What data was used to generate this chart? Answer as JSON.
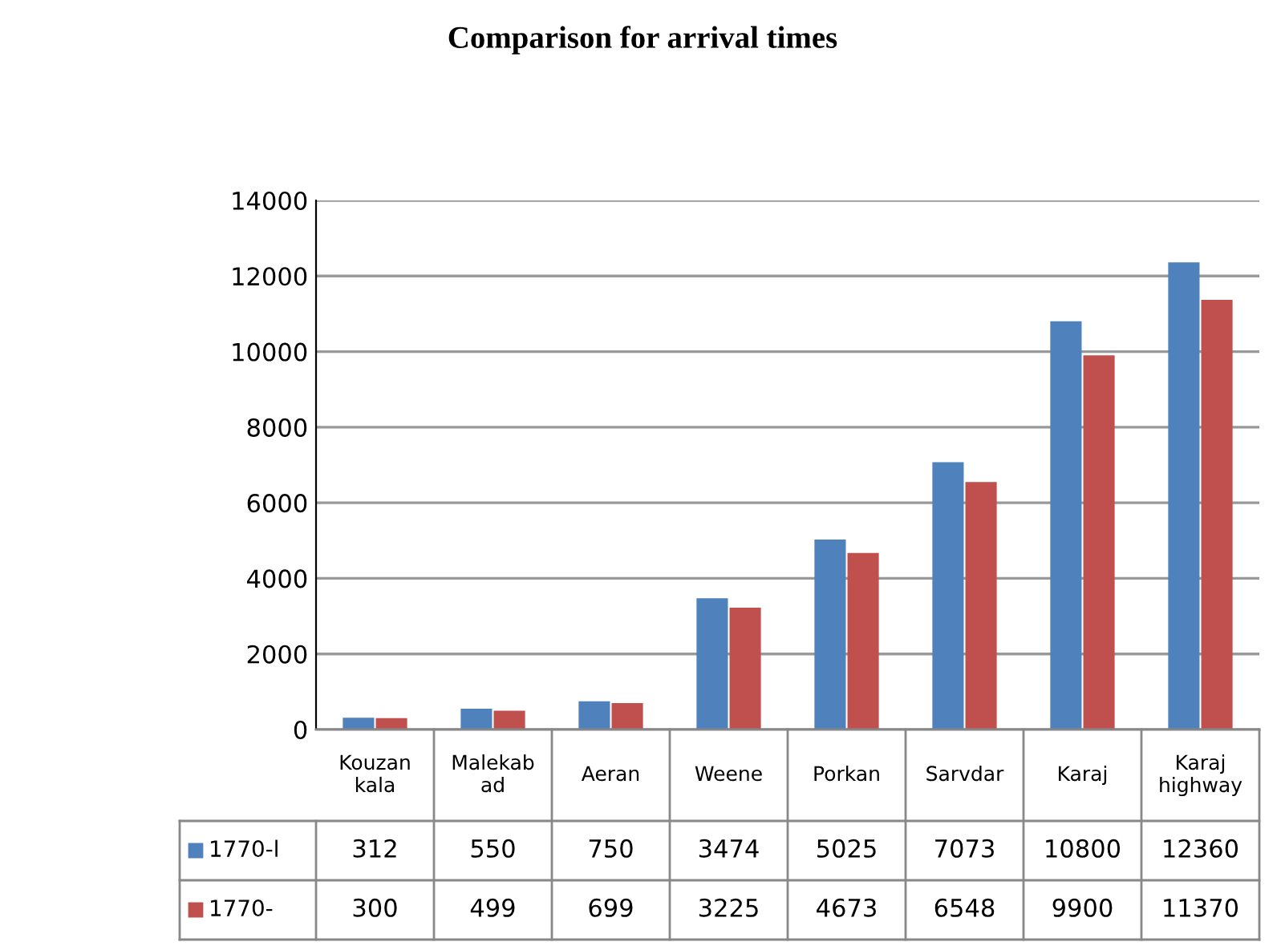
{
  "chart_data": {
    "type": "bar",
    "title": "Comparison for arrival times",
    "categories": [
      "Kouzan\nkala",
      "Malekab\nad",
      "Aeran",
      "Weene",
      "Porkan",
      "Sarvdar",
      "Karaj",
      "Karaj\nhighway"
    ],
    "series": [
      {
        "name": "1770-l",
        "color": "#4f81bd",
        "values": [
          312,
          550,
          750,
          3474,
          5025,
          7073,
          10800,
          12360
        ]
      },
      {
        "name": "1770-",
        "color": "#c0504d",
        "values": [
          300,
          499,
          699,
          3225,
          4673,
          6548,
          9900,
          11370
        ]
      }
    ],
    "ylim": [
      0,
      14000
    ],
    "yticks": [
      0,
      2000,
      4000,
      6000,
      8000,
      10000,
      12000,
      14000
    ],
    "grid": "y",
    "legend": "bottom",
    "data_labels": true
  }
}
